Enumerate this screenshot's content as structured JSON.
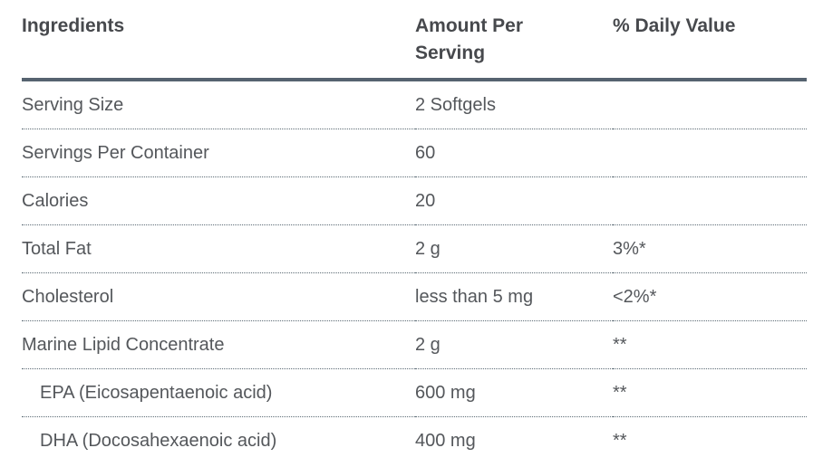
{
  "table": {
    "columns": [
      {
        "label": "Ingredients"
      },
      {
        "label": "Amount Per Serving"
      },
      {
        "label": "% Daily Value"
      }
    ],
    "rows": [
      {
        "ingredient": "Serving Size",
        "amount": "2 Softgels",
        "daily_value": "",
        "indent": false
      },
      {
        "ingredient": "Servings Per Container",
        "amount": "60",
        "daily_value": "",
        "indent": false
      },
      {
        "ingredient": "Calories",
        "amount": "20",
        "daily_value": "",
        "indent": false
      },
      {
        "ingredient": "Total Fat",
        "amount": "2 g",
        "daily_value": "3%*",
        "indent": false
      },
      {
        "ingredient": "Cholesterol",
        "amount": "less than 5 mg",
        "daily_value": "<2%*",
        "indent": false
      },
      {
        "ingredient": "Marine Lipid Concentrate",
        "amount": "2 g",
        "daily_value": "**",
        "indent": false
      },
      {
        "ingredient": "EPA (Eicosapentaenoic acid)",
        "amount": "600 mg",
        "daily_value": "**",
        "indent": true
      },
      {
        "ingredient": "DHA (Docosahexaenoic acid)",
        "amount": "400 mg",
        "daily_value": "**",
        "indent": true
      }
    ],
    "colors": {
      "header_text": "#47494d",
      "body_text": "#54575b",
      "header_rule": "#566370",
      "row_divider": "#5c6b75"
    }
  }
}
